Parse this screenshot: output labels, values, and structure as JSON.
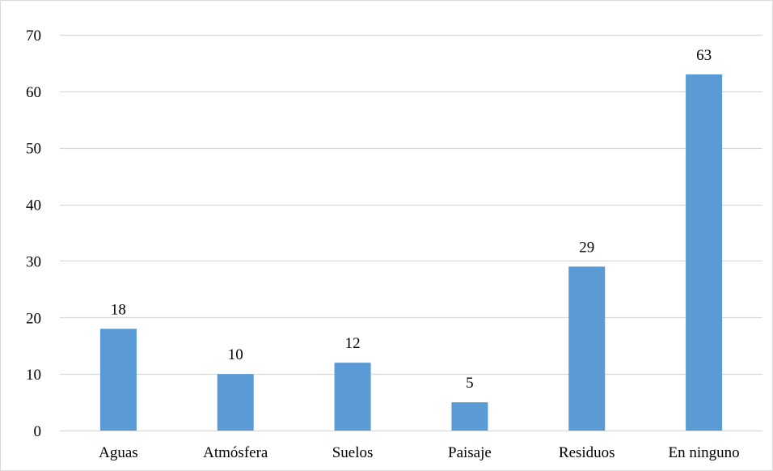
{
  "chart_data": {
    "type": "bar",
    "categories": [
      "Aguas",
      "Atmósfera",
      "Suelos",
      "Paisaje",
      "Residuos",
      "En ninguno"
    ],
    "values": [
      18,
      10,
      12,
      5,
      29,
      63
    ],
    "data_labels": [
      "18",
      "10",
      "12",
      "5",
      "29",
      "63"
    ],
    "title": "",
    "xlabel": "",
    "ylabel": "",
    "ylim": [
      0,
      70
    ],
    "yticks": [
      0,
      10,
      20,
      30,
      40,
      50,
      60,
      70
    ],
    "ytick_labels": [
      "0",
      "10",
      "20",
      "30",
      "40",
      "50",
      "60",
      "70"
    ],
    "grid": true,
    "legend": "none",
    "bar_color": "#5b9bd5",
    "grid_color": "#d9d9d9"
  }
}
